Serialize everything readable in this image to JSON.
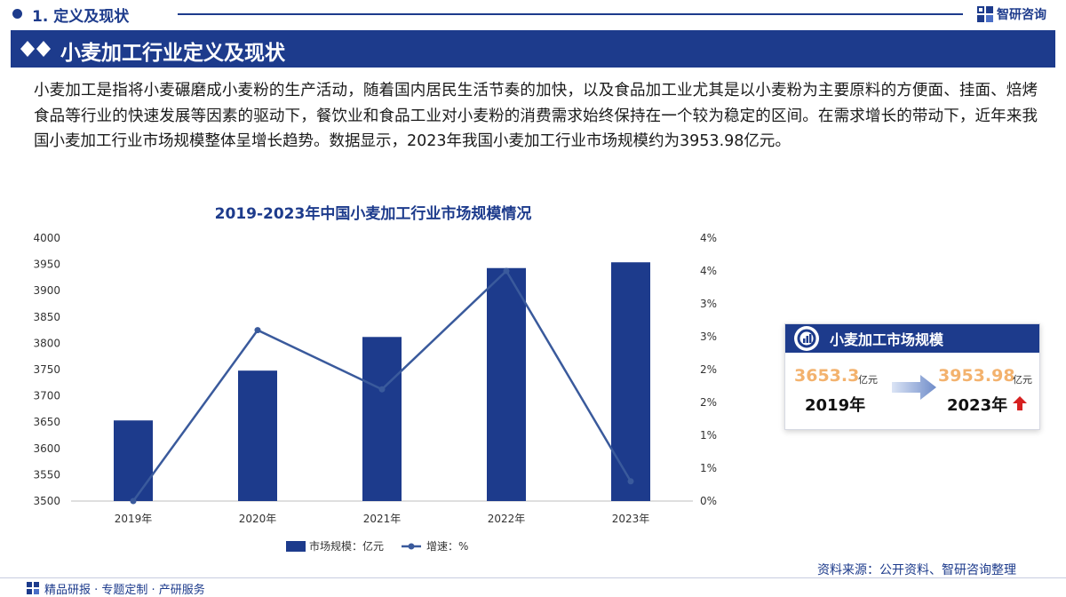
{
  "header": {
    "section": "1. 定义及现状",
    "logo_text": "智研咨询",
    "logo_icon": "zhiyan-logo-icon"
  },
  "banner": {
    "title": "小麦加工行业定义及现状",
    "icon": "double-diamond-icon"
  },
  "intro": "小麦加工是指将小麦碾磨成小麦粉的生产活动，随着国内居民生活节奏的加快，以及食品加工业尤其是以小麦粉为主要原料的方便面、挂面、焙烤食品等行业的快速发展等因素的驱动下，餐饮业和食品工业对小麦粉的消费需求始终保持在一个较为稳定的区间。在需求增长的带动下，近年来我国小麦加工行业市场规模整体呈增长趋势。数据显示，2023年我国小麦加工行业市场规模约为3953.98亿元。",
  "chart_data": {
    "type": "bar",
    "title": "2019-2023年中国小麦加工行业市场规模情况",
    "categories": [
      "2019年",
      "2020年",
      "2021年",
      "2022年",
      "2023年"
    ],
    "series": [
      {
        "name": "市场规模：亿元",
        "type": "bar",
        "axis": "left",
        "color": "#1d3b8c",
        "values": [
          3653.3,
          3748,
          3812,
          3943,
          3953.98
        ]
      },
      {
        "name": "增速：%",
        "type": "line",
        "axis": "right",
        "color": "#3a5a9c",
        "values": [
          0,
          2.6,
          1.7,
          3.5,
          0.3
        ]
      }
    ],
    "y_left": {
      "min": 3500,
      "max": 4000,
      "ticks": [
        "3500",
        "3550",
        "3600",
        "3650",
        "3700",
        "3750",
        "3800",
        "3850",
        "3900",
        "3950",
        "4000"
      ]
    },
    "y_right": {
      "min": 0,
      "max": 4,
      "ticks": [
        "0%",
        "1%",
        "1%",
        "2%",
        "2%",
        "3%",
        "3%",
        "4%",
        "4%"
      ]
    },
    "grid": false,
    "legend_position": "bottom"
  },
  "kpi": {
    "title": "小麦加工市场规模",
    "from_value": "3653.3",
    "from_unit": "亿元",
    "from_year": "2019年",
    "to_value": "3953.98",
    "to_unit": "亿元",
    "to_year": "2023年",
    "icon": "chart-badge-icon",
    "arrow_icon": "right-arrow-icon",
    "up_icon": "up-arrow-icon",
    "value_color": "#f3b26e",
    "up_color": "#d62020"
  },
  "footer": {
    "slogan": "精品研报 · 专题定制 · 产研服务",
    "source": "资料来源：公开资料、智研咨询整理"
  },
  "colors": {
    "brand": "#1d3b8c"
  }
}
